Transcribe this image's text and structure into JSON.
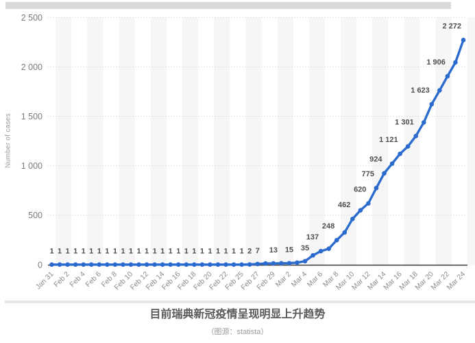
{
  "y_axis_title": "Number of cases",
  "caption": {
    "title": "目前瑞典新冠疫情呈现明显上升趋势",
    "source": "（图源：statista）"
  },
  "colors": {
    "line": "#2b6bce",
    "value_label": "#4e4e4e",
    "y_tick_label": "#7b7b7b",
    "x_tick_label": "#8c8c8c",
    "gridline": "#cccccc",
    "stripe": "#f6f6f6",
    "axis": "#3a3a3a"
  },
  "chart_data": {
    "type": "line",
    "title": "",
    "xlabel": "",
    "ylabel": "Number of cases",
    "ylim": [
      0,
      2500
    ],
    "yticks": [
      0,
      500,
      1000,
      1500,
      2000,
      2500
    ],
    "ytick_labels": [
      "0",
      "500",
      "1 000",
      "1 500",
      "2 000",
      "2 500"
    ],
    "grid": "horizontal-dotted",
    "legend": "none",
    "points": [
      {
        "date": "Jan 31",
        "value": 1,
        "label": "1",
        "tick": true
      },
      {
        "date": "Feb 1",
        "value": 1,
        "label": "1",
        "tick": false
      },
      {
        "date": "Feb 2",
        "value": 1,
        "label": "1",
        "tick": true
      },
      {
        "date": "Feb 3",
        "value": 1,
        "label": "1",
        "tick": false
      },
      {
        "date": "Feb 4",
        "value": 1,
        "label": "1",
        "tick": true
      },
      {
        "date": "Feb 5",
        "value": 1,
        "label": "1",
        "tick": false
      },
      {
        "date": "Feb 6",
        "value": 1,
        "label": "1",
        "tick": true
      },
      {
        "date": "Feb 7",
        "value": 1,
        "label": "1",
        "tick": false
      },
      {
        "date": "Feb 8",
        "value": 1,
        "label": "1",
        "tick": true
      },
      {
        "date": "Feb 9",
        "value": 1,
        "label": "1",
        "tick": false
      },
      {
        "date": "Feb 10",
        "value": 1,
        "label": "1",
        "tick": true
      },
      {
        "date": "Feb 11",
        "value": 1,
        "label": "1",
        "tick": false
      },
      {
        "date": "Feb 12",
        "value": 1,
        "label": "1",
        "tick": true
      },
      {
        "date": "Feb 13",
        "value": 1,
        "label": "1",
        "tick": false
      },
      {
        "date": "Feb 14",
        "value": 1,
        "label": "1",
        "tick": true
      },
      {
        "date": "Feb 15",
        "value": 1,
        "label": "1",
        "tick": false
      },
      {
        "date": "Feb 16",
        "value": 1,
        "label": "1",
        "tick": true
      },
      {
        "date": "Feb 17",
        "value": 1,
        "label": "1",
        "tick": false
      },
      {
        "date": "Feb 18",
        "value": 1,
        "label": "1",
        "tick": true
      },
      {
        "date": "Feb 19",
        "value": 1,
        "label": "1",
        "tick": false
      },
      {
        "date": "Feb 20",
        "value": 1,
        "label": "1",
        "tick": true
      },
      {
        "date": "Feb 21",
        "value": 1,
        "label": "1",
        "tick": false
      },
      {
        "date": "Feb 22",
        "value": 1,
        "label": "1",
        "tick": true
      },
      {
        "date": "Feb 24",
        "value": 1,
        "label": "1",
        "tick": false
      },
      {
        "date": "Feb 25",
        "value": 1,
        "label": "1",
        "tick": true
      },
      {
        "date": "Feb 26",
        "value": 2,
        "label": "2",
        "tick": false
      },
      {
        "date": "Feb 27",
        "value": 7,
        "label": "7",
        "tick": true
      },
      {
        "date": "Feb 28",
        "value": 12,
        "label": "",
        "tick": false
      },
      {
        "date": "Feb 29",
        "value": 13,
        "label": "13",
        "tick": true
      },
      {
        "date": "Mar 1",
        "value": 14,
        "label": "",
        "tick": false
      },
      {
        "date": "Mar 2",
        "value": 15,
        "label": "15",
        "tick": true
      },
      {
        "date": "Mar 3",
        "value": 21,
        "label": "",
        "tick": false
      },
      {
        "date": "Mar 4",
        "value": 35,
        "label": "35",
        "tick": true
      },
      {
        "date": "Mar 5",
        "value": 94,
        "label": "",
        "tick": false
      },
      {
        "date": "Mar 6",
        "value": 137,
        "label": "137",
        "tick": true
      },
      {
        "date": "Mar 7",
        "value": 161,
        "label": "",
        "tick": false
      },
      {
        "date": "Mar 8",
        "value": 248,
        "label": "248",
        "tick": true
      },
      {
        "date": "Mar 9",
        "value": 326,
        "label": "",
        "tick": false
      },
      {
        "date": "Mar 10",
        "value": 462,
        "label": "462",
        "tick": true
      },
      {
        "date": "Mar 11",
        "value": 550,
        "label": "",
        "tick": false
      },
      {
        "date": "Mar 12",
        "value": 620,
        "label": "620",
        "tick": true
      },
      {
        "date": "Mar 13",
        "value": 775,
        "label": "775",
        "tick": false
      },
      {
        "date": "Mar 14",
        "value": 924,
        "label": "924",
        "tick": true
      },
      {
        "date": "Mar 15",
        "value": 1022,
        "label": "",
        "tick": false
      },
      {
        "date": "Mar 16",
        "value": 1121,
        "label": "1 121",
        "tick": true
      },
      {
        "date": "Mar 17",
        "value": 1196,
        "label": "",
        "tick": false
      },
      {
        "date": "Mar 18",
        "value": 1301,
        "label": "1 301",
        "tick": true
      },
      {
        "date": "Mar 19",
        "value": 1439,
        "label": "",
        "tick": false
      },
      {
        "date": "Mar 20",
        "value": 1623,
        "label": "1 623",
        "tick": true
      },
      {
        "date": "Mar 21",
        "value": 1763,
        "label": "",
        "tick": false
      },
      {
        "date": "Mar 22",
        "value": 1906,
        "label": "1 906",
        "tick": true
      },
      {
        "date": "Mar 23",
        "value": 2046,
        "label": "",
        "tick": false
      },
      {
        "date": "Mar 24",
        "value": 2272,
        "label": "2 272",
        "tick": true
      }
    ]
  }
}
